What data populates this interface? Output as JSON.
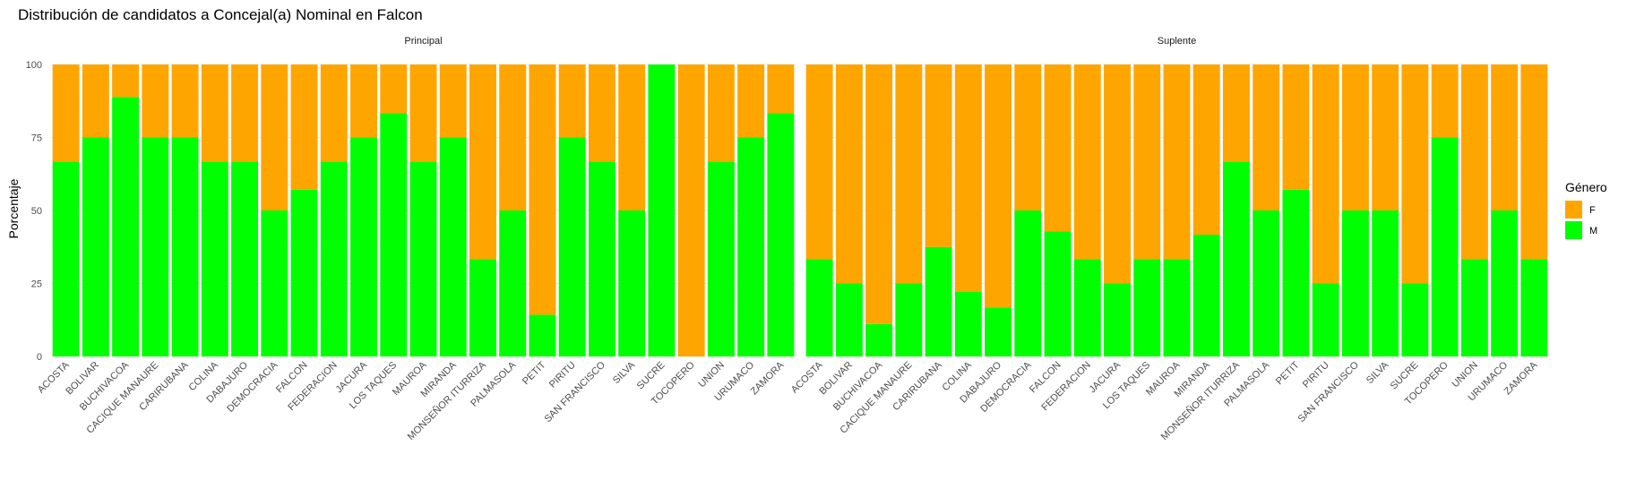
{
  "chart_data": {
    "type": "bar",
    "stacked": true,
    "title": "Distribución de candidatos a Concejal(a) Nominal en Falcon",
    "ylabel": "Porcentaje",
    "xlabel": "",
    "ylim": [
      0,
      100
    ],
    "yticks": [
      0,
      25,
      50,
      75,
      100
    ],
    "grid": true,
    "legend": {
      "title": "Género",
      "position": "right",
      "entries": [
        {
          "name": "F",
          "color": "#FFA500"
        },
        {
          "name": "M",
          "color": "#00FF00"
        }
      ]
    },
    "categories": [
      "ACOSTA",
      "BOLIVAR",
      "BUCHIVACOA",
      "CACIQUE MANAURE",
      "CARIRUBANA",
      "COLINA",
      "DABAJURO",
      "DEMOCRACIA",
      "FALCON",
      "FEDERACION",
      "JACURA",
      "LOS TAQUES",
      "MAUROA",
      "MIRANDA",
      "MONSEÑOR ITURRIZA",
      "PALMASOLA",
      "PETIT",
      "PIRITU",
      "SAN FRANCISCO",
      "SILVA",
      "SUCRE",
      "TOCOPERO",
      "UNION",
      "URUMACO",
      "ZAMORA"
    ],
    "panels": [
      {
        "name": "Principal",
        "series": [
          {
            "name": "M",
            "values": [
              66.7,
              75,
              88.9,
              75,
              75,
              66.7,
              66.7,
              50,
              57.1,
              66.7,
              75,
              83.3,
              66.7,
              75,
              33.3,
              50,
              14.3,
              75,
              66.7,
              50,
              100,
              0,
              66.7,
              75,
              83.3
            ]
          },
          {
            "name": "F",
            "values": [
              33.3,
              25,
              11.1,
              25,
              25,
              33.3,
              33.3,
              50,
              42.9,
              33.3,
              25,
              16.7,
              33.3,
              25,
              66.7,
              50,
              85.7,
              25,
              33.3,
              50,
              0,
              100,
              33.3,
              25,
              16.7
            ]
          }
        ]
      },
      {
        "name": "Suplente",
        "series": [
          {
            "name": "M",
            "values": [
              33.3,
              25,
              11.1,
              25,
              37.5,
              22.2,
              16.7,
              50,
              42.9,
              33.3,
              25,
              33.3,
              33.3,
              41.7,
              66.7,
              50,
              57.1,
              25,
              50,
              50,
              25,
              75,
              33.3,
              50,
              33.3
            ]
          },
          {
            "name": "F",
            "values": [
              66.7,
              75,
              88.9,
              75,
              62.5,
              77.8,
              83.3,
              50,
              57.1,
              66.7,
              75,
              66.7,
              66.7,
              58.3,
              33.3,
              50,
              42.9,
              75,
              50,
              50,
              75,
              25,
              66.7,
              50,
              66.7
            ]
          }
        ]
      }
    ]
  }
}
